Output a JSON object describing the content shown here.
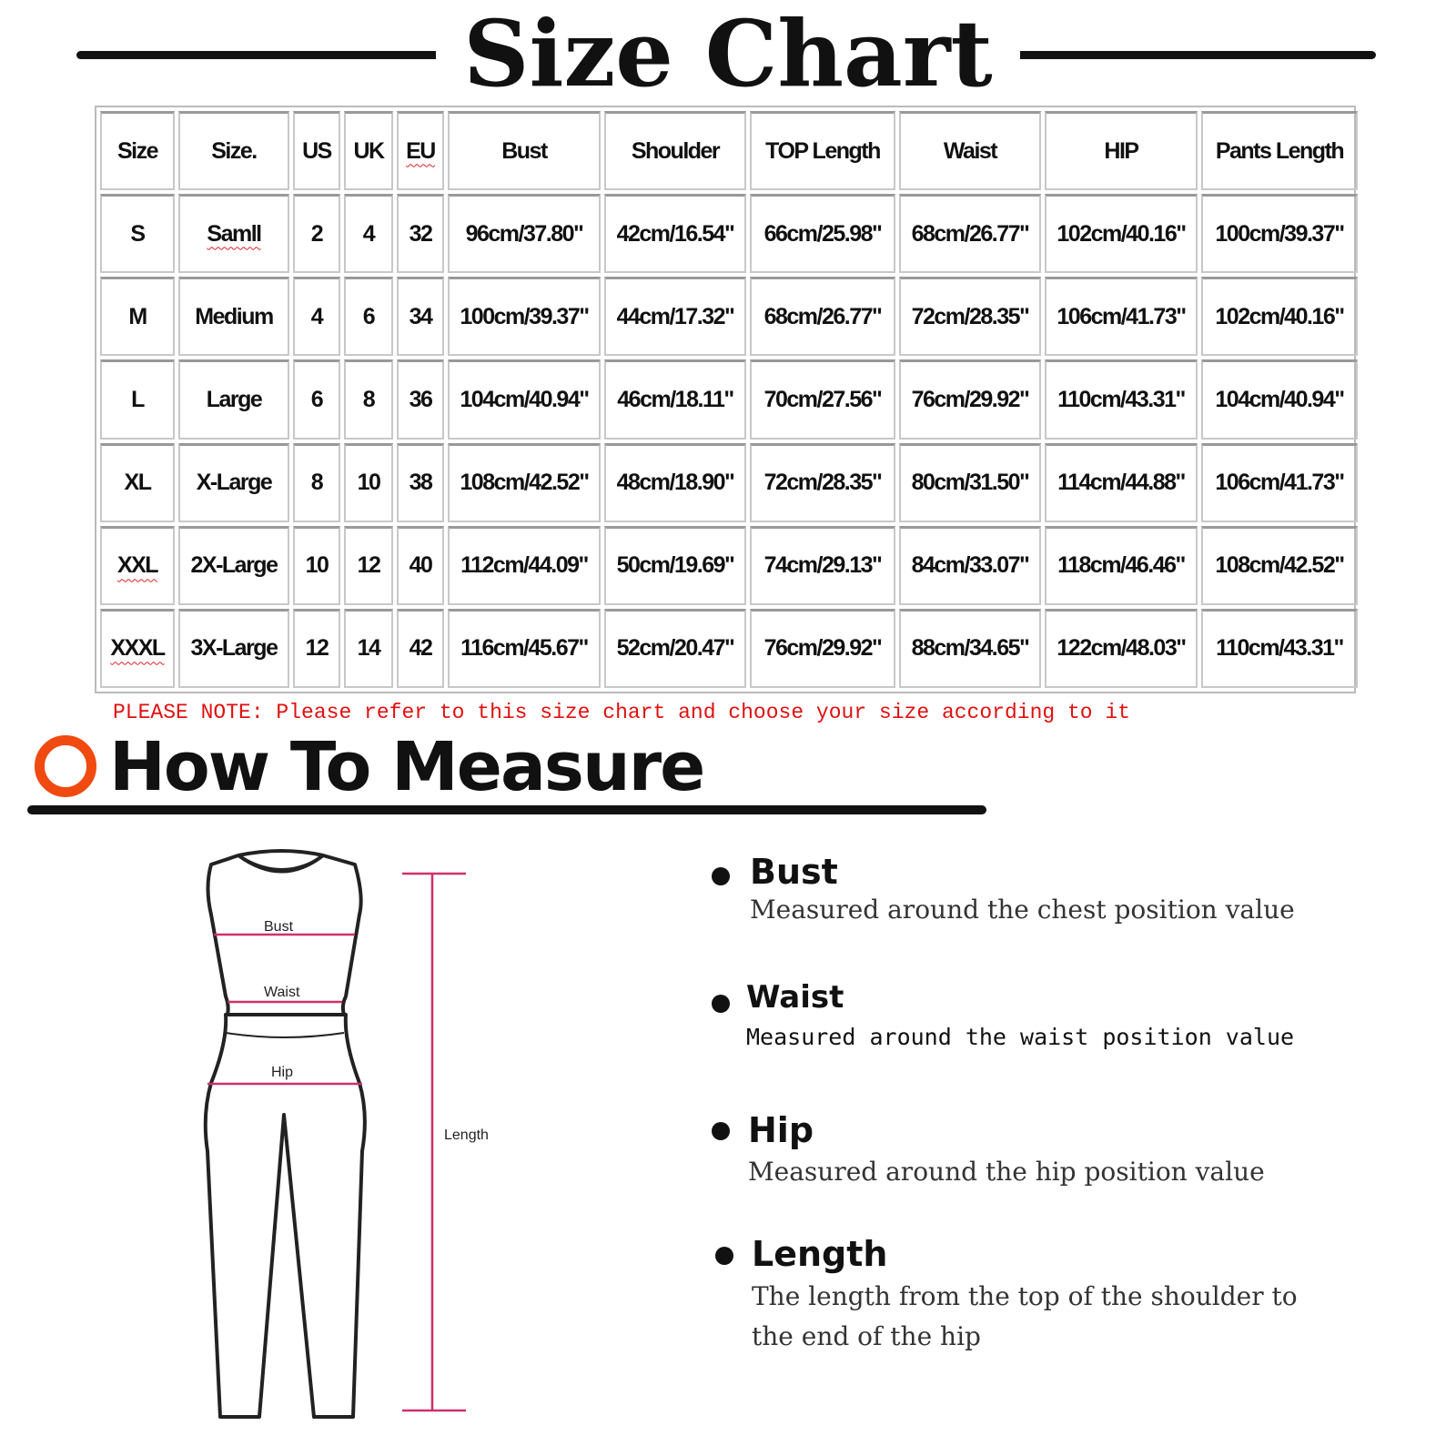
{
  "title": "Size Chart",
  "table": {
    "headers": [
      "Size",
      "Size.",
      "US",
      "UK",
      "EU",
      "Bust",
      "Shoulder",
      "TOP Length",
      "Waist",
      "HIP",
      "Pants Length"
    ],
    "rows": [
      [
        "S",
        "Samll",
        "2",
        "4",
        "32",
        "96cm/37.80\"",
        "42cm/16.54\"",
        "66cm/25.98\"",
        "68cm/26.77\"",
        "102cm/40.16\"",
        "100cm/39.37\""
      ],
      [
        "M",
        "Medium",
        "4",
        "6",
        "34",
        "100cm/39.37\"",
        "44cm/17.32\"",
        "68cm/26.77\"",
        "72cm/28.35\"",
        "106cm/41.73\"",
        "102cm/40.16\""
      ],
      [
        "L",
        "Large",
        "6",
        "8",
        "36",
        "104cm/40.94\"",
        "46cm/18.11\"",
        "70cm/27.56\"",
        "76cm/29.92\"",
        "110cm/43.31\"",
        "104cm/40.94\""
      ],
      [
        "XL",
        "X-Large",
        "8",
        "10",
        "38",
        "108cm/42.52\"",
        "48cm/18.90\"",
        "72cm/28.35\"",
        "80cm/31.50\"",
        "114cm/44.88\"",
        "106cm/41.73\""
      ],
      [
        "XXL",
        "2X-Large",
        "10",
        "12",
        "40",
        "112cm/44.09\"",
        "50cm/19.69\"",
        "74cm/29.13\"",
        "84cm/33.07\"",
        "118cm/46.46\"",
        "108cm/42.52\""
      ],
      [
        "XXXL",
        "3X-Large",
        "12",
        "14",
        "42",
        "116cm/45.67\"",
        "52cm/20.47\"",
        "76cm/29.92\"",
        "88cm/34.65\"",
        "122cm/48.03\"",
        "110cm/43.31\""
      ]
    ]
  },
  "note": "PLEASE NOTE: Please refer to this size chart and choose your size according to it",
  "how_to_measure": "How To Measure",
  "figure_labels": {
    "bust": "Bust",
    "waist": "Waist",
    "hip": "Hip",
    "length": "Length"
  },
  "measures": [
    {
      "title": "Bust",
      "desc": "Measured around the chest position value"
    },
    {
      "title": "Waist",
      "desc": "Measured around the waist position value"
    },
    {
      "title": "Hip",
      "desc": "Measured around the  hip position value"
    },
    {
      "title": "Length",
      "desc": "The length from the top of the shoulder to the end of the hip"
    }
  ],
  "colors": {
    "accent": "#f04a10",
    "note": "#e01010",
    "measure_line": "#d0306a"
  }
}
